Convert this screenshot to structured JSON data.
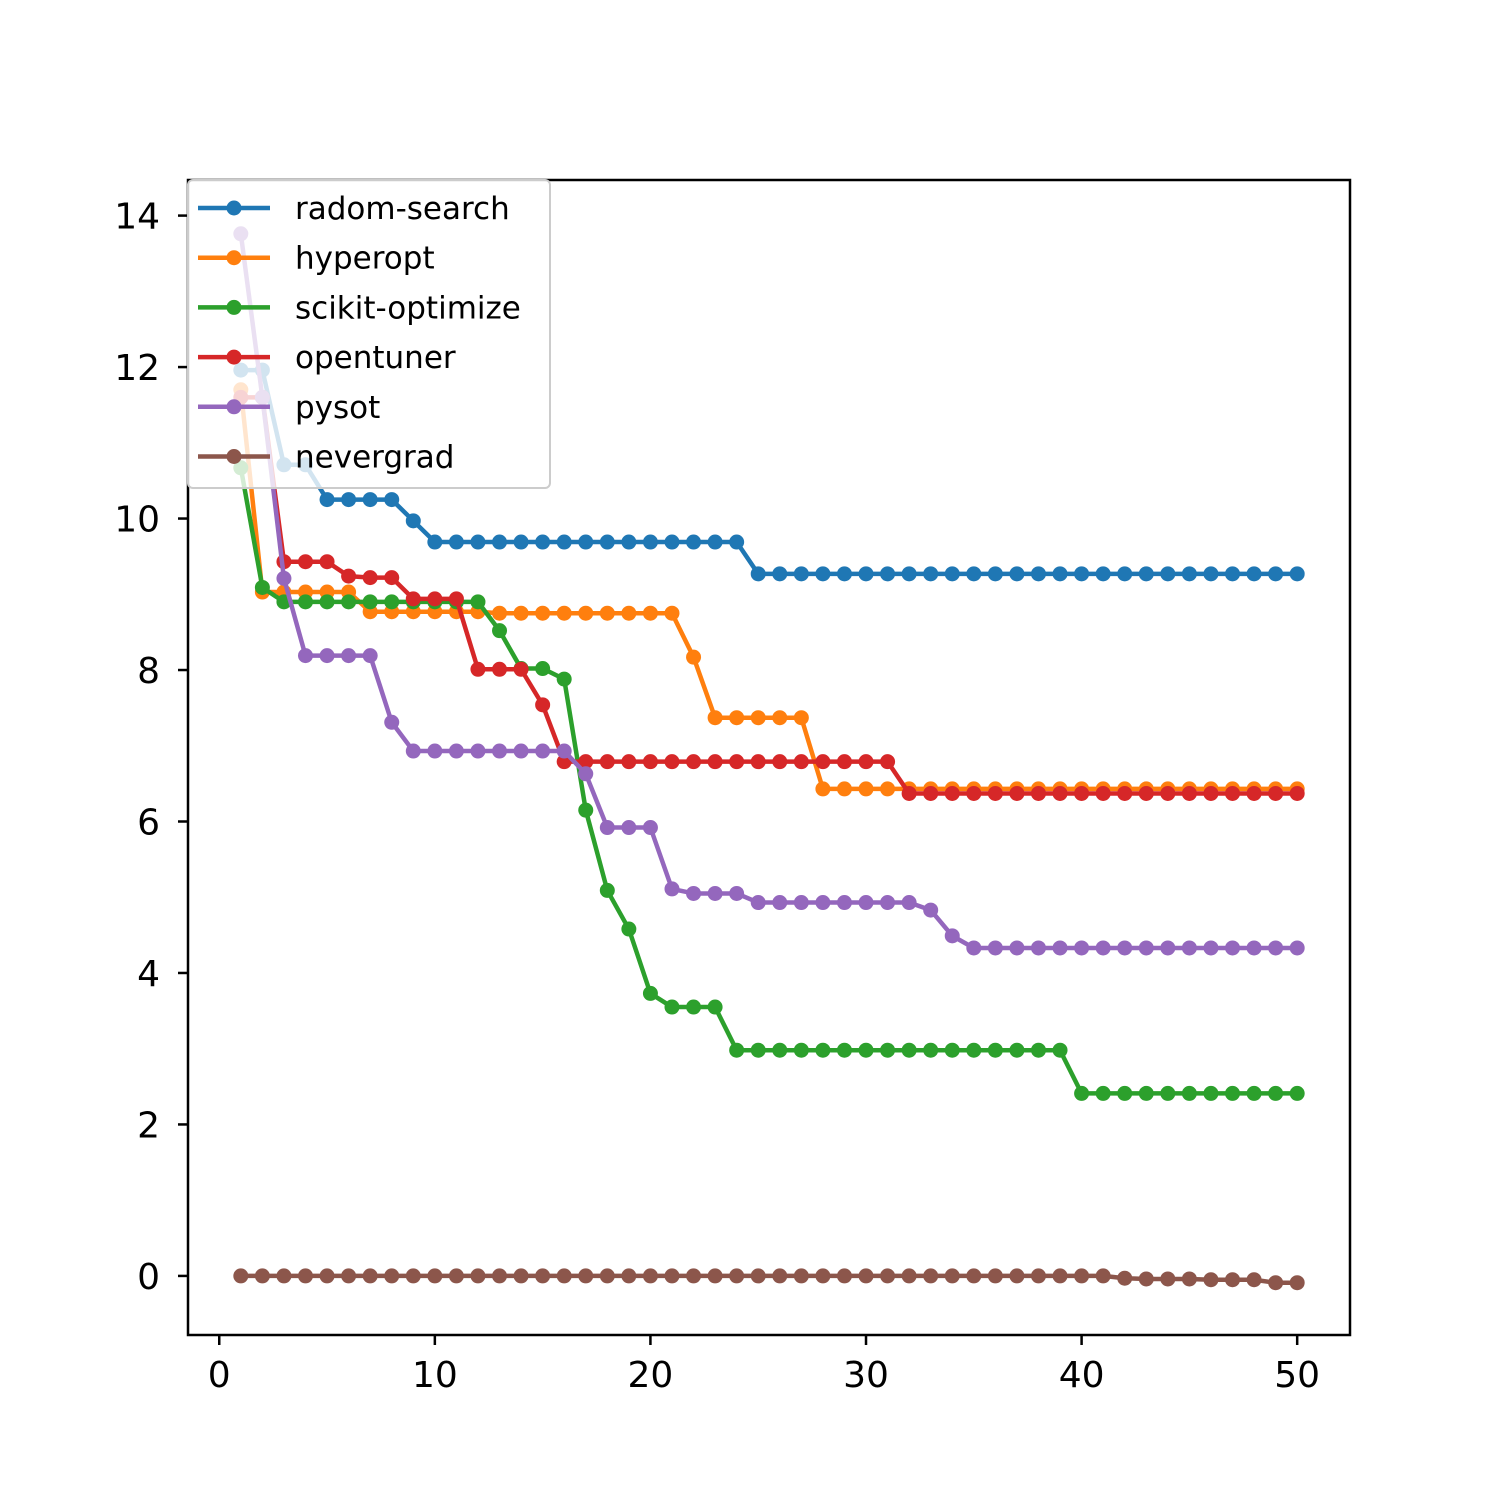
{
  "chart_data": {
    "type": "line",
    "title": "",
    "xlabel": "",
    "ylabel": "",
    "xlim": [
      -1.45,
      52.45
    ],
    "ylim": [
      -0.78,
      14.47
    ],
    "xticks": [
      0,
      10,
      20,
      30,
      40,
      50
    ],
    "yticks": [
      0,
      2,
      4,
      6,
      8,
      10,
      12,
      14
    ],
    "grid": false,
    "legend_position": "upper-left",
    "x": [
      1,
      2,
      3,
      4,
      5,
      6,
      7,
      8,
      9,
      10,
      11,
      12,
      13,
      14,
      15,
      16,
      17,
      18,
      19,
      20,
      21,
      22,
      23,
      24,
      25,
      26,
      27,
      28,
      29,
      30,
      31,
      32,
      33,
      34,
      35,
      36,
      37,
      38,
      39,
      40,
      41,
      42,
      43,
      44,
      45,
      46,
      47,
      48,
      49,
      50
    ],
    "series": [
      {
        "name": "radom-search",
        "color": "#1f77b4",
        "values": [
          11.96,
          11.96,
          10.71,
          10.71,
          10.25,
          10.25,
          10.25,
          10.25,
          9.97,
          9.69,
          9.69,
          9.69,
          9.69,
          9.69,
          9.69,
          9.69,
          9.69,
          9.69,
          9.69,
          9.69,
          9.69,
          9.69,
          9.69,
          9.69,
          9.27,
          9.27,
          9.27,
          9.27,
          9.27,
          9.27,
          9.27,
          9.27,
          9.27,
          9.27,
          9.27,
          9.27,
          9.27,
          9.27,
          9.27,
          9.27,
          9.27,
          9.27,
          9.27,
          9.27,
          9.27,
          9.27,
          9.27,
          9.27,
          9.27,
          9.27
        ]
      },
      {
        "name": "hyperopt",
        "color": "#ff7f0e",
        "values": [
          11.7,
          9.03,
          9.03,
          9.03,
          9.03,
          9.03,
          8.77,
          8.77,
          8.77,
          8.77,
          8.77,
          8.77,
          8.75,
          8.75,
          8.75,
          8.75,
          8.75,
          8.75,
          8.75,
          8.75,
          8.75,
          8.17,
          7.37,
          7.37,
          7.37,
          7.37,
          7.37,
          6.43,
          6.43,
          6.43,
          6.43,
          6.43,
          6.43,
          6.43,
          6.43,
          6.43,
          6.43,
          6.43,
          6.43,
          6.43,
          6.43,
          6.43,
          6.43,
          6.43,
          6.43,
          6.43,
          6.43,
          6.43,
          6.43,
          6.43
        ]
      },
      {
        "name": "scikit-optimize",
        "color": "#2ca02c",
        "values": [
          10.67,
          9.09,
          8.9,
          8.9,
          8.9,
          8.9,
          8.9,
          8.9,
          8.9,
          8.9,
          8.9,
          8.9,
          8.52,
          8.02,
          8.02,
          7.88,
          6.15,
          5.09,
          4.58,
          3.73,
          3.55,
          3.55,
          3.55,
          2.98,
          2.98,
          2.98,
          2.98,
          2.98,
          2.98,
          2.98,
          2.98,
          2.98,
          2.98,
          2.98,
          2.98,
          2.98,
          2.98,
          2.98,
          2.98,
          2.41,
          2.41,
          2.41,
          2.41,
          2.41,
          2.41,
          2.41,
          2.41,
          2.41,
          2.41,
          2.41
        ]
      },
      {
        "name": "opentuner",
        "color": "#d62728",
        "values": [
          11.6,
          11.6,
          9.43,
          9.43,
          9.43,
          9.24,
          9.22,
          9.22,
          8.94,
          8.94,
          8.94,
          8.01,
          8.01,
          8.01,
          7.54,
          6.79,
          6.79,
          6.79,
          6.79,
          6.79,
          6.79,
          6.79,
          6.79,
          6.79,
          6.79,
          6.79,
          6.79,
          6.79,
          6.79,
          6.79,
          6.79,
          6.37,
          6.37,
          6.37,
          6.37,
          6.37,
          6.37,
          6.37,
          6.37,
          6.37,
          6.37,
          6.37,
          6.37,
          6.37,
          6.37,
          6.37,
          6.37,
          6.37,
          6.37,
          6.37
        ]
      },
      {
        "name": "pysot",
        "color": "#9467bd",
        "values": [
          13.76,
          11.6,
          9.21,
          8.19,
          8.19,
          8.19,
          8.19,
          7.31,
          6.93,
          6.93,
          6.93,
          6.93,
          6.93,
          6.93,
          6.93,
          6.93,
          6.63,
          5.92,
          5.92,
          5.92,
          5.11,
          5.05,
          5.05,
          5.05,
          4.93,
          4.93,
          4.93,
          4.93,
          4.93,
          4.93,
          4.93,
          4.93,
          4.83,
          4.49,
          4.33,
          4.33,
          4.33,
          4.33,
          4.33,
          4.33,
          4.33,
          4.33,
          4.33,
          4.33,
          4.33,
          4.33,
          4.33,
          4.33,
          4.33,
          4.33
        ]
      },
      {
        "name": "nevergrad",
        "color": "#8c564b",
        "values": [
          0,
          0,
          0,
          0,
          0,
          0,
          0,
          0,
          0,
          0,
          0,
          0,
          0,
          0,
          0,
          0,
          0,
          0,
          0,
          0,
          0,
          0,
          0,
          0,
          0,
          0,
          0,
          0,
          0,
          0,
          0,
          0,
          0,
          0,
          0,
          0,
          0,
          0,
          0,
          0,
          0,
          -0.03,
          -0.04,
          -0.04,
          -0.04,
          -0.05,
          -0.05,
          -0.05,
          -0.09,
          -0.09
        ]
      }
    ]
  }
}
